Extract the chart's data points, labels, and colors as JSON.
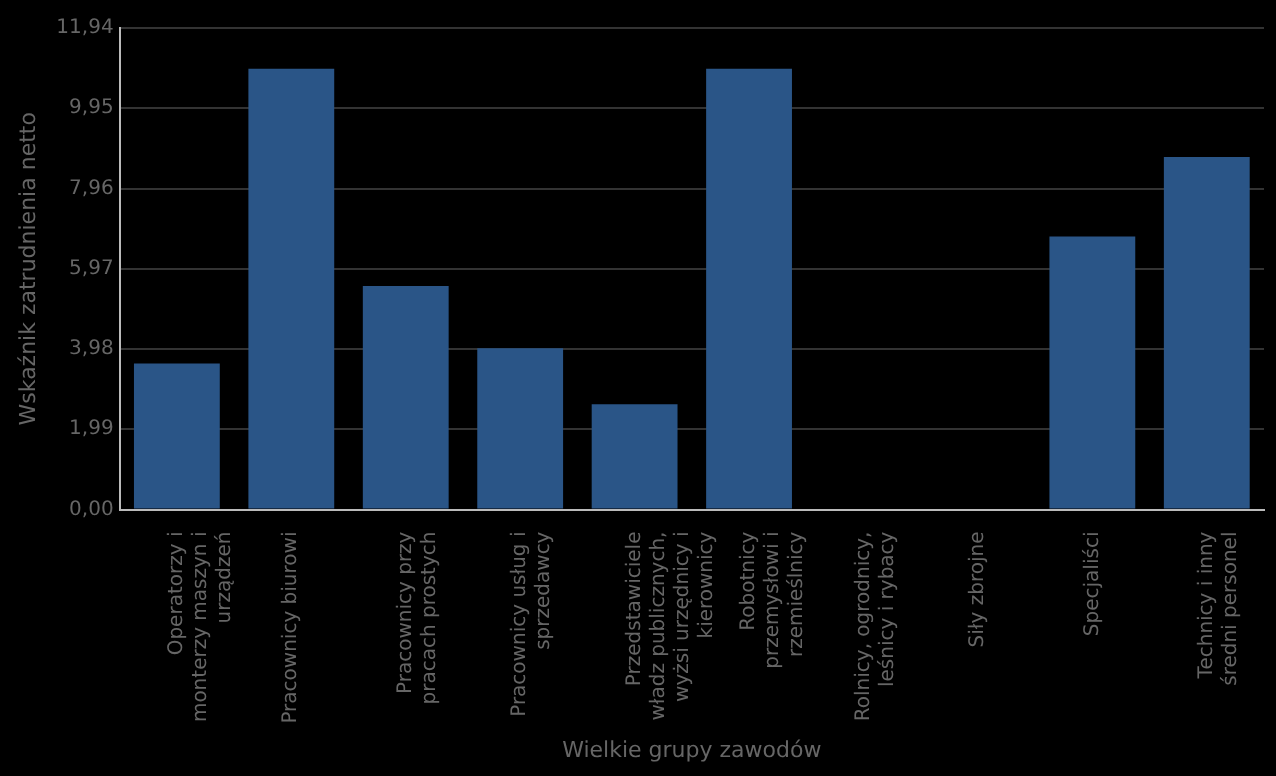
{
  "chart_data": {
    "type": "bar",
    "xlabel": "Wielkie grupy zawodów",
    "ylabel": "Wskaźnik zatrudnienia netto",
    "categories": [
      "Operatorzy i monterzy maszyn i urządzeń",
      "Pracownicy biurowi",
      "Pracownicy przy pracach prostych",
      "Pracownicy usług i sprzedawcy",
      "Przedstawiciele władz publicznych, wyżsi urzędnicy i kierownicy",
      "Robotnicy przemysłowi i rzemieślnicy",
      "Rolnicy, ogrodnicy, leśnicy i rybacy",
      "Siły zbrojne",
      "Specjaliści",
      "Technicy i inny średni personel"
    ],
    "values": [
      3.62,
      10.93,
      5.54,
      4.0,
      2.61,
      10.93,
      0,
      0,
      6.77,
      8.74
    ],
    "color": "#2a5587",
    "ylim": [
      0,
      11.94
    ],
    "yticks": [
      {
        "value": 0,
        "label": "0,00"
      },
      {
        "value": 1.99,
        "label": "1,99"
      },
      {
        "value": 3.98,
        "label": "3,98"
      },
      {
        "value": 5.97,
        "label": "5,97"
      },
      {
        "value": 7.96,
        "label": "7,96"
      },
      {
        "value": 9.95,
        "label": "9,95"
      },
      {
        "value": 11.94,
        "label": "11,94"
      }
    ],
    "grid": "y",
    "legend": false
  }
}
